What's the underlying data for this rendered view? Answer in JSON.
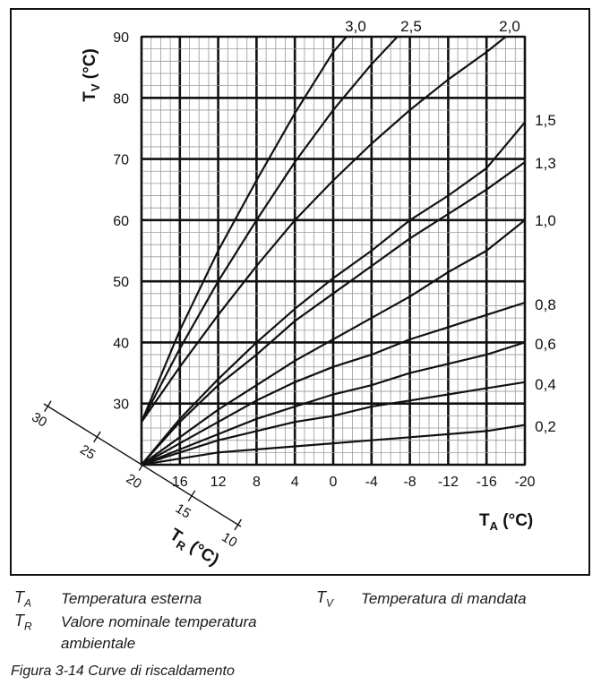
{
  "chart_data": {
    "type": "line",
    "ylabel_main": "T",
    "ylabel_sub": "V",
    "ylabel_unit": " (°C)",
    "xlabel_main": "T",
    "xlabel_sub": "A",
    "xlabel_unit": " (°C)",
    "rlabel_main": "T",
    "rlabel_sub": "R",
    "rlabel_unit": " (°C)",
    "xlim": [
      20,
      -20
    ],
    "ylim": [
      20,
      90
    ],
    "x_ticks": [
      "16",
      "12",
      "8",
      "4",
      "0",
      "-4",
      "-8",
      "-12",
      "-16",
      "-20"
    ],
    "y_ticks": [
      "30",
      "40",
      "50",
      "60",
      "70",
      "80",
      "90"
    ],
    "room_ticks": [
      "30",
      "25",
      "20",
      "15",
      "10"
    ],
    "grid": true,
    "series": [
      {
        "name": "3,0",
        "x": [
          20,
          16,
          12,
          8,
          4,
          0,
          -2.5
        ],
        "y": [
          27,
          42,
          55,
          66.5,
          77.5,
          87.5,
          92
        ]
      },
      {
        "name": "2,5",
        "x": [
          20,
          16,
          12,
          8,
          4,
          0,
          -4,
          -7
        ],
        "y": [
          27,
          39,
          50,
          60,
          69.5,
          78,
          85.5,
          90.5
        ]
      },
      {
        "name": "2,0",
        "x": [
          20,
          16,
          12,
          8,
          4,
          0,
          -4,
          -8,
          -12,
          -16,
          -18
        ],
        "y": [
          27,
          36,
          44.5,
          52.5,
          60,
          66.5,
          72.5,
          78,
          83,
          87.5,
          90
        ]
      },
      {
        "name": "1,5",
        "x": [
          20,
          16,
          12,
          8,
          4,
          0,
          -4,
          -8,
          -12,
          -16,
          -20
        ],
        "y": [
          20,
          27.5,
          34,
          40,
          45.5,
          50.5,
          55,
          60,
          64,
          68.5,
          76
        ]
      },
      {
        "name": "1,3",
        "x": [
          20,
          16,
          12,
          8,
          4,
          0,
          -4,
          -8,
          -12,
          -16,
          -20
        ],
        "y": [
          20,
          27,
          33,
          38,
          43.5,
          48,
          52.5,
          57,
          61,
          65,
          69.5
        ]
      },
      {
        "name": "1,0",
        "x": [
          20,
          16,
          12,
          8,
          4,
          0,
          -4,
          -8,
          -12,
          -16,
          -20
        ],
        "y": [
          20,
          24.5,
          29,
          33,
          37,
          40.5,
          44,
          47.5,
          51.5,
          55,
          60
        ]
      },
      {
        "name": "0,8",
        "x": [
          20,
          16,
          12,
          8,
          4,
          0,
          -4,
          -8,
          -12,
          -16,
          -20
        ],
        "y": [
          20,
          23.5,
          27,
          30.5,
          33.5,
          36,
          38,
          40.5,
          42.5,
          44.5,
          46.5
        ]
      },
      {
        "name": "0,6",
        "x": [
          20,
          16,
          12,
          8,
          4,
          0,
          -4,
          -8,
          -12,
          -16,
          -20
        ],
        "y": [
          20,
          22.5,
          25,
          27.5,
          29.5,
          31.5,
          33,
          35,
          36.5,
          38,
          40
        ]
      },
      {
        "name": "0,4",
        "x": [
          20,
          16,
          12,
          8,
          4,
          0,
          -4,
          -8,
          -12,
          -16,
          -20
        ],
        "y": [
          20,
          22,
          24,
          25.5,
          27,
          28,
          29.5,
          30.5,
          31.5,
          32.5,
          33.5
        ]
      },
      {
        "name": "0,2",
        "x": [
          20,
          16,
          12,
          8,
          4,
          0,
          -4,
          -8,
          -12,
          -16,
          -20
        ],
        "y": [
          20,
          21,
          22,
          22.5,
          23,
          23.5,
          24,
          24.5,
          25,
          25.5,
          26.5
        ]
      }
    ]
  },
  "legend": {
    "ta_symbol": "T",
    "ta_sub": "A",
    "ta_text": "Temperatura esterna",
    "tr_symbol": "T",
    "tr_sub": "R",
    "tr_text_line1": "Valore nominale temperatura",
    "tr_text_line2": "ambientale",
    "tv_symbol": "T",
    "tv_sub": "V",
    "tv_text": "Temperatura di mandata"
  },
  "caption": "Figura 3-14  Curve di riscaldamento"
}
